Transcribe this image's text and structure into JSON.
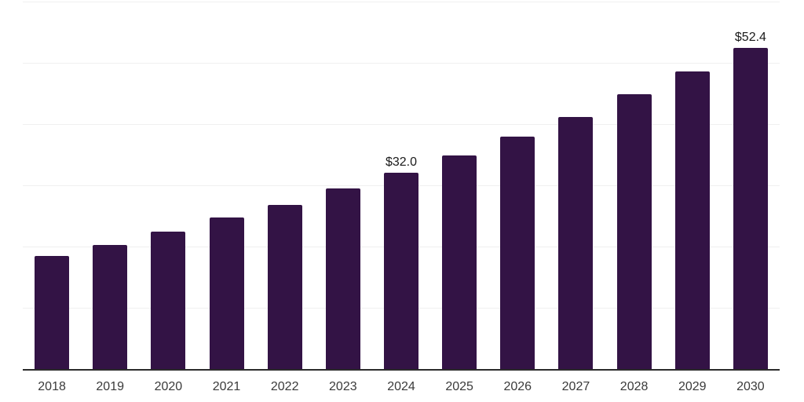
{
  "chart_data": {
    "type": "bar",
    "title": "",
    "xlabel": "",
    "ylabel": "",
    "categories": [
      "2018",
      "2019",
      "2020",
      "2021",
      "2022",
      "2023",
      "2024",
      "2025",
      "2026",
      "2027",
      "2028",
      "2029",
      "2030"
    ],
    "values": [
      18.5,
      20.3,
      22.4,
      24.7,
      26.8,
      29.5,
      32.0,
      34.9,
      38.0,
      41.2,
      44.9,
      48.6,
      52.4
    ],
    "point_labels": [
      "",
      "",
      "",
      "",
      "",
      "",
      "$32.0",
      "",
      "",
      "",
      "",
      "",
      "$52.4"
    ],
    "ylim": [
      0,
      60
    ],
    "gridline_step": 10,
    "grid": true,
    "legend": "none",
    "y_tick_labels_visible": false,
    "colors": {
      "bar": "#331345",
      "gridline": "#f0f0f0",
      "axis": "#2b2b2b",
      "tick_label": "#3a3a3a",
      "value_label": "#1a1a1a",
      "background": "#ffffff"
    }
  }
}
